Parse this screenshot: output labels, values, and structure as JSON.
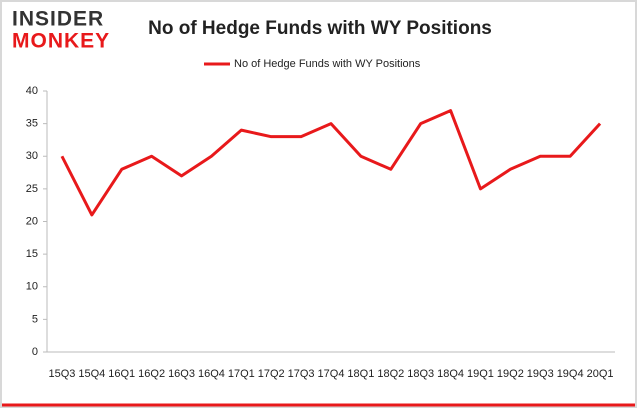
{
  "logo": {
    "line1": "INSIDER",
    "line2": "MONKEY"
  },
  "chart_data": {
    "type": "line",
    "title": "No of Hedge Funds with WY Positions",
    "categories": [
      "15Q3",
      "15Q4",
      "16Q1",
      "16Q2",
      "16Q3",
      "16Q4",
      "17Q1",
      "17Q2",
      "17Q3",
      "17Q4",
      "18Q1",
      "18Q2",
      "18Q3",
      "18Q4",
      "19Q1",
      "19Q2",
      "19Q3",
      "19Q4",
      "20Q1"
    ],
    "series": [
      {
        "name": "No of Hedge Funds with WY Positions",
        "color": "#e8191b",
        "values": [
          30,
          21,
          28,
          30,
          27,
          30,
          34,
          33,
          33,
          35,
          30,
          28,
          35,
          37,
          25,
          28,
          30,
          30,
          35
        ]
      }
    ],
    "ylim": [
      0,
      40
    ],
    "yticks": [
      0,
      5,
      10,
      15,
      20,
      25,
      30,
      35,
      40
    ],
    "grid": false,
    "legend": "top"
  }
}
